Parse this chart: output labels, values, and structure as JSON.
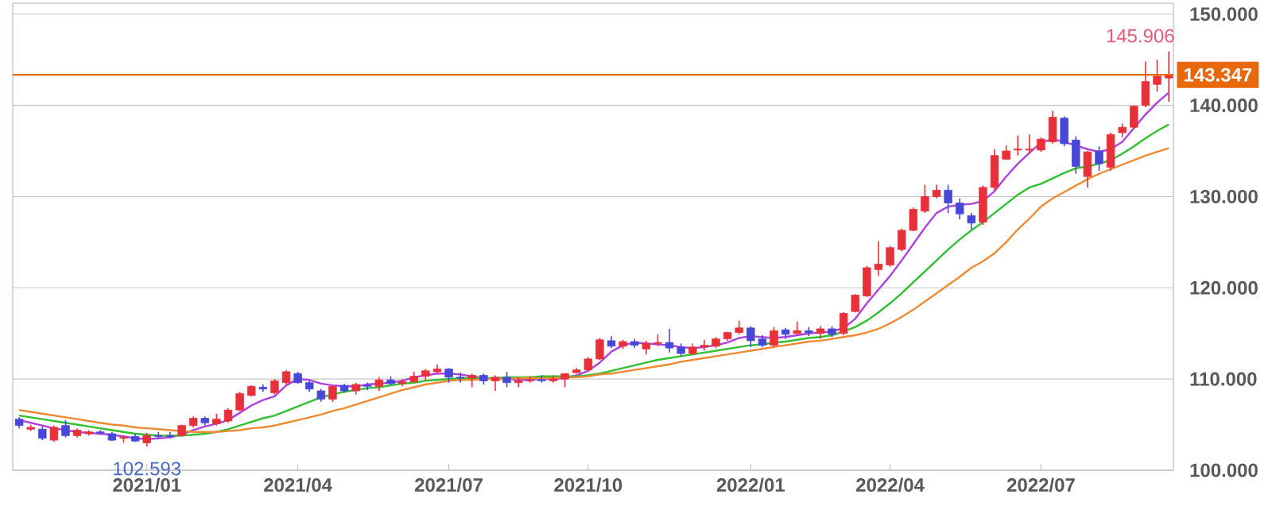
{
  "chart_data": {
    "type": "candlestick",
    "categories": [
      null,
      null,
      null,
      null,
      null,
      null,
      null,
      null,
      null,
      null,
      null,
      "2021/01",
      null,
      null,
      null,
      null,
      null,
      null,
      null,
      null,
      null,
      null,
      null,
      null,
      "2021/04",
      null,
      null,
      null,
      null,
      null,
      null,
      null,
      null,
      null,
      null,
      null,
      null,
      "2021/07",
      null,
      null,
      null,
      null,
      null,
      null,
      null,
      null,
      null,
      null,
      null,
      "2021/10",
      null,
      null,
      null,
      null,
      null,
      null,
      null,
      null,
      null,
      null,
      null,
      null,
      null,
      "2022/01",
      null,
      null,
      null,
      null,
      null,
      null,
      null,
      null,
      null,
      null,
      null,
      "2022/04",
      null,
      null,
      null,
      null,
      null,
      null,
      null,
      null,
      null,
      null,
      null,
      null,
      "2022/07",
      null,
      null,
      null,
      null,
      null,
      null,
      null,
      null,
      null,
      null,
      null
    ],
    "ohlc": [
      [
        105.6,
        105.8,
        104.6,
        104.9
      ],
      [
        104.5,
        105.0,
        104.3,
        104.7
      ],
      [
        104.5,
        104.8,
        103.3,
        103.5
      ],
      [
        103.3,
        104.9,
        103.1,
        104.7
      ],
      [
        104.9,
        105.5,
        103.6,
        103.8
      ],
      [
        103.8,
        104.6,
        103.6,
        104.4
      ],
      [
        104.0,
        104.4,
        103.8,
        104.2
      ],
      [
        104.2,
        104.4,
        103.9,
        104.1
      ],
      [
        104.0,
        104.2,
        103.2,
        103.3
      ],
      [
        103.5,
        103.8,
        103.0,
        103.6
      ],
      [
        103.7,
        104.0,
        103.1,
        103.2
      ],
      [
        103.0,
        104.1,
        102.593,
        103.8
      ],
      [
        103.8,
        104.2,
        103.4,
        103.7
      ],
      [
        103.8,
        104.2,
        103.5,
        103.7
      ],
      [
        103.8,
        105.0,
        103.7,
        104.9
      ],
      [
        104.9,
        105.9,
        104.7,
        105.7
      ],
      [
        105.7,
        105.9,
        104.9,
        105.2
      ],
      [
        105.1,
        106.2,
        104.9,
        105.6
      ],
      [
        105.4,
        106.8,
        105.2,
        106.6
      ],
      [
        106.6,
        108.6,
        106.5,
        108.4
      ],
      [
        108.2,
        109.3,
        108.1,
        109.2
      ],
      [
        109.1,
        109.4,
        108.6,
        108.9
      ],
      [
        108.5,
        110.0,
        108.3,
        109.8
      ],
      [
        109.6,
        110.97,
        109.4,
        110.8
      ],
      [
        110.6,
        110.8,
        109.5,
        109.6
      ],
      [
        109.6,
        109.8,
        108.6,
        108.9
      ],
      [
        108.7,
        108.9,
        107.5,
        107.8
      ],
      [
        107.8,
        109.3,
        107.5,
        109.2
      ],
      [
        109.3,
        109.5,
        108.5,
        108.7
      ],
      [
        108.7,
        109.6,
        108.3,
        109.4
      ],
      [
        109.3,
        109.6,
        108.8,
        109.2
      ],
      [
        109.2,
        110.2,
        108.7,
        109.9
      ],
      [
        109.9,
        110.3,
        109.3,
        109.5
      ],
      [
        109.5,
        110.0,
        109.2,
        109.7
      ],
      [
        109.7,
        110.8,
        109.6,
        110.3
      ],
      [
        110.3,
        111.1,
        109.8,
        110.9
      ],
      [
        110.8,
        111.6,
        110.6,
        111.1
      ],
      [
        111.1,
        111.2,
        109.6,
        110.2
      ],
      [
        110.2,
        110.7,
        109.6,
        110.1
      ],
      [
        110.1,
        110.6,
        109.1,
        110.4
      ],
      [
        110.4,
        110.6,
        109.4,
        109.8
      ],
      [
        109.8,
        110.4,
        108.7,
        110.2
      ],
      [
        110.2,
        110.8,
        109.1,
        109.6
      ],
      [
        109.6,
        110.2,
        109.1,
        109.8
      ],
      [
        109.8,
        110.3,
        109.6,
        109.9
      ],
      [
        109.9,
        110.4,
        109.6,
        109.8
      ],
      [
        109.8,
        110.4,
        109.6,
        110.0
      ],
      [
        110.0,
        110.6,
        109.1,
        110.6
      ],
      [
        110.7,
        111.2,
        110.6,
        111.0
      ],
      [
        111.0,
        112.4,
        110.9,
        112.2
      ],
      [
        112.2,
        114.5,
        112.1,
        114.3
      ],
      [
        114.2,
        114.7,
        113.4,
        113.6
      ],
      [
        113.6,
        114.3,
        113.3,
        114.1
      ],
      [
        114.1,
        114.4,
        113.4,
        113.7
      ],
      [
        113.3,
        114.2,
        112.7,
        113.9
      ],
      [
        113.9,
        114.9,
        113.6,
        114.0
      ],
      [
        114.0,
        115.5,
        112.9,
        113.4
      ],
      [
        113.5,
        113.9,
        112.5,
        112.8
      ],
      [
        112.8,
        113.9,
        112.6,
        113.5
      ],
      [
        113.5,
        114.3,
        113.1,
        113.7
      ],
      [
        113.6,
        114.6,
        113.4,
        114.4
      ],
      [
        114.4,
        115.2,
        114.2,
        115.1
      ],
      [
        115.1,
        116.4,
        114.9,
        115.6
      ],
      [
        115.6,
        115.8,
        113.5,
        114.2
      ],
      [
        114.4,
        114.8,
        113.5,
        113.7
      ],
      [
        113.7,
        115.7,
        113.5,
        115.3
      ],
      [
        115.4,
        115.6,
        114.4,
        114.9
      ],
      [
        115.0,
        116.3,
        114.8,
        115.3
      ],
      [
        115.3,
        115.7,
        114.7,
        115.1
      ],
      [
        115.0,
        115.8,
        114.4,
        115.5
      ],
      [
        115.5,
        115.8,
        114.6,
        114.9
      ],
      [
        115.0,
        117.3,
        114.8,
        117.2
      ],
      [
        117.4,
        119.3,
        117.3,
        119.2
      ],
      [
        119.1,
        122.4,
        119.0,
        122.2
      ],
      [
        122.0,
        125.1,
        121.3,
        122.6
      ],
      [
        122.5,
        124.6,
        122.3,
        124.4
      ],
      [
        124.2,
        126.5,
        124.0,
        126.3
      ],
      [
        126.3,
        128.8,
        126.2,
        128.6
      ],
      [
        128.4,
        131.3,
        128.2,
        130.0
      ],
      [
        130.0,
        131.3,
        129.8,
        130.7
      ],
      [
        130.7,
        131.3,
        128.2,
        129.3
      ],
      [
        129.3,
        129.8,
        127.5,
        128.1
      ],
      [
        127.9,
        128.2,
        126.4,
        127.1
      ],
      [
        127.2,
        131.2,
        126.9,
        131.0
      ],
      [
        131.0,
        135.2,
        130.7,
        134.5
      ],
      [
        134.1,
        135.6,
        134.0,
        135.0
      ],
      [
        135.1,
        136.7,
        134.5,
        135.2
      ],
      [
        135.1,
        136.8,
        134.7,
        135.2
      ],
      [
        135.1,
        136.5,
        134.9,
        136.3
      ],
      [
        136.0,
        139.4,
        135.8,
        138.7
      ],
      [
        138.6,
        138.8,
        135.5,
        135.8
      ],
      [
        136.2,
        136.6,
        132.5,
        133.3
      ],
      [
        132.2,
        135.0,
        131.0,
        134.9
      ],
      [
        135.0,
        135.5,
        132.8,
        133.6
      ],
      [
        133.2,
        137.0,
        132.8,
        136.8
      ],
      [
        137.0,
        138.0,
        136.5,
        137.6
      ],
      [
        137.6,
        140.0,
        137.4,
        139.9
      ],
      [
        140.0,
        144.8,
        139.8,
        142.6
      ],
      [
        142.3,
        145.0,
        141.5,
        143.2
      ],
      [
        143.0,
        145.906,
        140.4,
        143.347
      ]
    ],
    "series": [
      {
        "type": "line",
        "color": "#b040e0",
        "values": [
          105.5,
          105.2,
          104.9,
          104.6,
          104.4,
          104.2,
          104.1,
          104.0,
          103.9,
          103.7,
          103.5,
          103.4,
          103.5,
          103.6,
          103.9,
          104.4,
          104.8,
          105.1,
          105.5,
          106.3,
          107.1,
          107.7,
          108.1,
          109.3,
          110.0,
          109.9,
          109.5,
          109.3,
          109.2,
          109.2,
          109.4,
          109.5,
          109.6,
          109.8,
          110.2,
          110.4,
          110.6,
          110.6,
          110.5,
          110.3,
          110.1,
          110.0,
          110.0,
          109.9,
          109.9,
          110.0,
          110.0,
          110.1,
          110.4,
          110.9,
          111.8,
          113.0,
          113.7,
          114.0,
          113.9,
          113.8,
          113.7,
          113.5,
          113.4,
          113.5,
          113.7,
          114.0,
          114.5,
          114.7,
          114.6,
          114.5,
          114.6,
          114.8,
          115.0,
          115.1,
          115.2,
          115.6,
          116.6,
          118.3,
          119.8,
          121.3,
          123.0,
          124.8,
          126.6,
          128.2,
          128.9,
          129.1,
          129.2,
          129.5,
          130.6,
          132.2,
          133.6,
          134.8,
          135.9,
          136.3,
          136.0,
          135.6,
          135.2,
          134.9,
          135.2,
          136.0,
          137.5,
          139.0,
          140.3,
          141.4
        ]
      },
      {
        "type": "line",
        "color": "#30c030",
        "values": [
          106.0,
          105.8,
          105.6,
          105.4,
          105.2,
          105.0,
          104.8,
          104.6,
          104.4,
          104.2,
          104.0,
          103.9,
          103.8,
          103.8,
          103.8,
          103.9,
          104.0,
          104.2,
          104.5,
          104.9,
          105.3,
          105.7,
          106.0,
          106.5,
          107.0,
          107.5,
          108.0,
          108.3,
          108.6,
          108.8,
          109.0,
          109.1,
          109.3,
          109.5,
          109.6,
          109.8,
          109.9,
          110.0,
          110.1,
          110.1,
          110.1,
          110.1,
          110.2,
          110.2,
          110.2,
          110.3,
          110.3,
          110.3,
          110.3,
          110.4,
          110.6,
          110.9,
          111.2,
          111.5,
          111.8,
          112.1,
          112.3,
          112.5,
          112.7,
          112.9,
          113.1,
          113.3,
          113.5,
          113.7,
          113.8,
          114.0,
          114.1,
          114.3,
          114.5,
          114.6,
          114.8,
          115.2,
          115.7,
          116.4,
          117.3,
          118.3,
          119.4,
          120.6,
          121.8,
          123.0,
          124.2,
          125.3,
          126.3,
          127.2,
          128.2,
          129.2,
          130.2,
          131.0,
          131.4,
          132.0,
          132.6,
          133.1,
          133.3,
          133.6,
          134.0,
          134.7,
          135.5,
          136.4,
          137.2,
          137.9
        ]
      },
      {
        "type": "line",
        "color": "#f08a30",
        "values": [
          106.6,
          106.4,
          106.2,
          106.0,
          105.8,
          105.6,
          105.4,
          105.2,
          105.0,
          104.9,
          104.7,
          104.6,
          104.5,
          104.4,
          104.3,
          104.2,
          104.2,
          104.2,
          104.3,
          104.4,
          104.6,
          104.7,
          104.9,
          105.2,
          105.5,
          105.8,
          106.1,
          106.5,
          106.8,
          107.2,
          107.6,
          108.0,
          108.4,
          108.8,
          109.1,
          109.4,
          109.6,
          109.8,
          109.9,
          109.9,
          110.0,
          110.0,
          110.0,
          110.1,
          110.1,
          110.1,
          110.1,
          110.2,
          110.2,
          110.3,
          110.5,
          110.6,
          110.8,
          111.0,
          111.2,
          111.4,
          111.6,
          111.9,
          112.1,
          112.3,
          112.5,
          112.7,
          112.9,
          113.1,
          113.3,
          113.5,
          113.7,
          113.9,
          114.1,
          114.2,
          114.4,
          114.6,
          114.8,
          115.1,
          115.5,
          116.1,
          116.8,
          117.6,
          118.5,
          119.4,
          120.3,
          121.2,
          122.2,
          122.9,
          123.8,
          125.0,
          126.4,
          127.6,
          128.9,
          129.8,
          130.5,
          131.2,
          131.9,
          132.5,
          133.0,
          133.5,
          134.0,
          134.5,
          134.9,
          135.3
        ]
      }
    ],
    "ylim": [
      100,
      151.2
    ],
    "yticks": [
      {
        "value": 100,
        "label": "100.000"
      },
      {
        "value": 110,
        "label": "110.000"
      },
      {
        "value": 120,
        "label": "120.000"
      },
      {
        "value": 130,
        "label": "130.000"
      },
      {
        "value": 140,
        "label": "140.000"
      },
      {
        "value": 150,
        "label": "150.000"
      }
    ],
    "grid": "y",
    "ref_lines": [
      {
        "axis": "y",
        "value": 143.347,
        "label": "143.347",
        "color": "#e8680c"
      }
    ],
    "annotations": [
      "145.906",
      "102.593"
    ]
  }
}
